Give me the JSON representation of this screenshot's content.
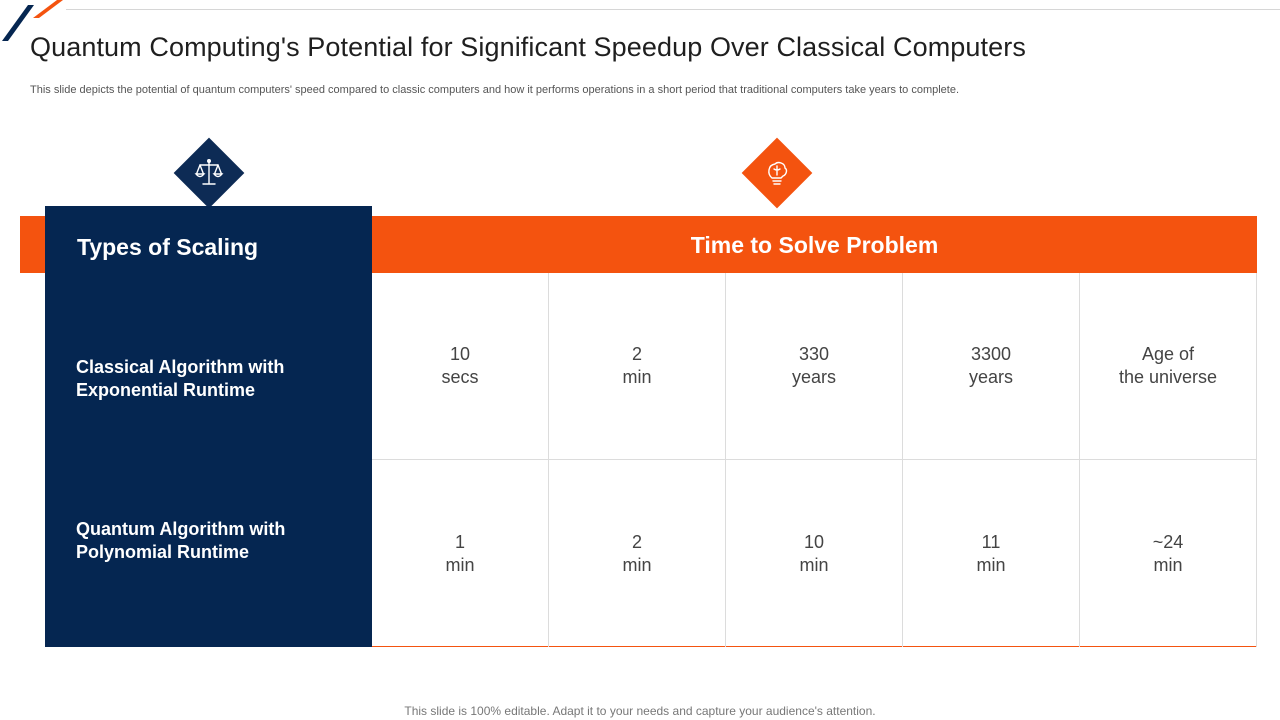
{
  "slide": {
    "title": "Quantum Computing's Potential for Significant Speedup Over Classical Computers",
    "subtitle": "This slide depicts the potential of quantum computers' speed compared to classic computers and how it performs operations in a short period that traditional computers take years to complete.",
    "footer": "This slide is 100% editable. Adapt it to your needs and capture your audience's attention."
  },
  "icons": {
    "left": "scales-icon",
    "right": "lightbulb-brain-icon"
  },
  "colors": {
    "navy": "#052651",
    "orange": "#f4530f"
  },
  "table": {
    "scaling_heading": "Types of Scaling",
    "time_heading": "Time to Solve Problem",
    "rows": [
      {
        "label": "Classical Algorithm with Exponential Runtime",
        "cells": [
          {
            "value": "10",
            "unit": "secs"
          },
          {
            "value": "2",
            "unit": "min"
          },
          {
            "value": "330",
            "unit": "years"
          },
          {
            "value": "3300",
            "unit": "years"
          },
          {
            "value": "Age of",
            "unit": "the universe"
          }
        ]
      },
      {
        "label": "Quantum Algorithm with Polynomial Runtime",
        "cells": [
          {
            "value": "1",
            "unit": "min"
          },
          {
            "value": "2",
            "unit": "min"
          },
          {
            "value": "10",
            "unit": "min"
          },
          {
            "value": "11",
            "unit": "min"
          },
          {
            "value": "~24",
            "unit": "min"
          }
        ]
      }
    ]
  }
}
